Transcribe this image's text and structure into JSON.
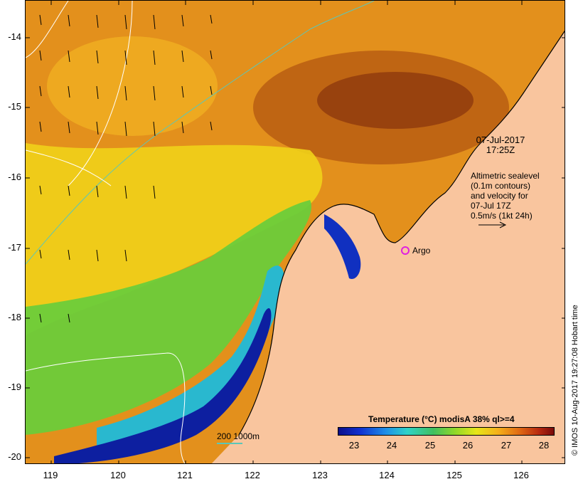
{
  "map": {
    "lat_ticks": [
      "-14",
      "-15",
      "-16",
      "-17",
      "-18",
      "-19",
      "-20"
    ],
    "lon_ticks": [
      "119",
      "120",
      "121",
      "122",
      "123",
      "124",
      "125",
      "126"
    ],
    "date": {
      "line1": "07-Jul-2017",
      "line2": "17:25Z"
    },
    "altimetry_note": [
      "Altimetric sealevel",
      "(0.1m contours)",
      "and velocity for",
      "07-Jul 17Z",
      "0.5m/s (1kt 24h)"
    ],
    "argo_label": "Argo",
    "scale_label": "200  1000m",
    "credit": "© IMOS 10-Aug-2017 19:27:08 Hobart time",
    "colors": {
      "land": "#f9c59e",
      "contour_isobath": "#5bc7b8",
      "argo": "#e020e0"
    }
  },
  "legend": {
    "title": "Temperature (°C) modisA 38% ql>=4",
    "ticks": [
      "23",
      "24",
      "25",
      "26",
      "27",
      "28"
    ]
  }
}
